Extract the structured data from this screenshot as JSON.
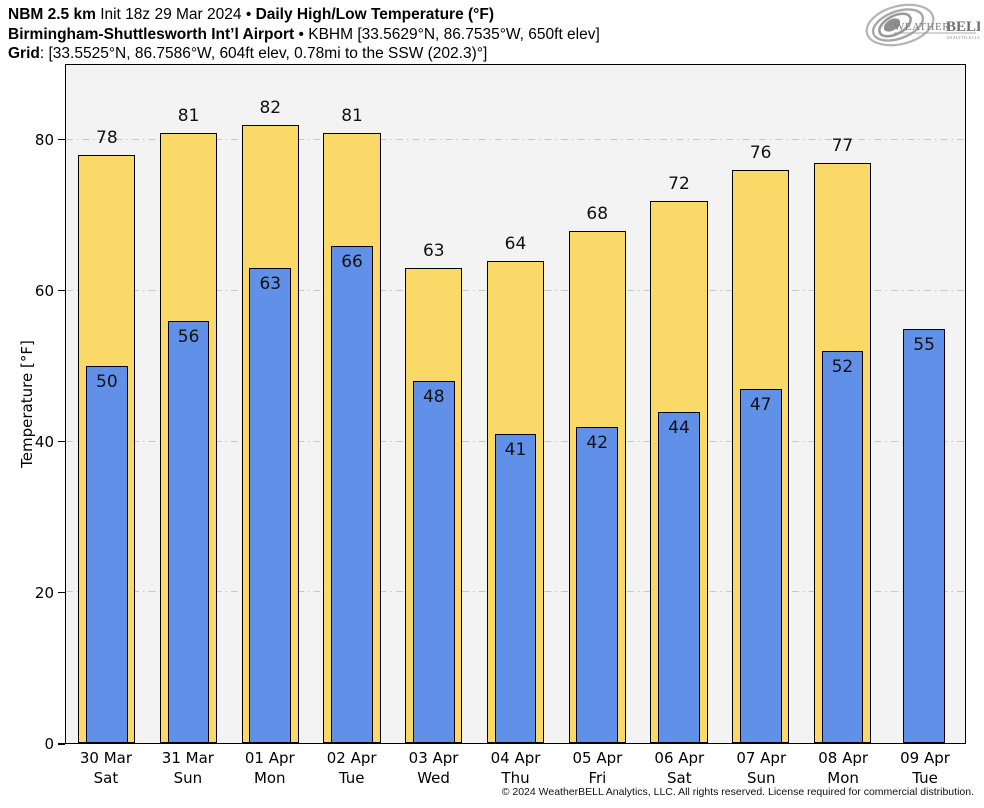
{
  "header": {
    "l1_model": "NBM 2.5 km",
    "l1_init": "Init 18z 29 Mar 2024",
    "l1_bullet": "•",
    "l1_product": "Daily High/Low Temperature (°F)",
    "l2_station": "Birmingham-Shuttlesworth Int’l Airport",
    "l2_bullet": "•",
    "l2_id": "KBHM [33.5629°N, 86.7535°W, 650ft elev]",
    "l3_label": "Grid",
    "l3_value": ": [33.5525°N, 86.7586°W, 604ft elev, 0.78mi to the SSW (202.3)°]"
  },
  "logo": {
    "brand_weather": "Weather",
    "brand_bell": "BELL",
    "subtext": "Analytics LLC"
  },
  "chart_data": {
    "type": "bar",
    "title": "Daily High/Low Temperature (°F)",
    "categories": [
      {
        "date": "30 Mar",
        "day": "Sat"
      },
      {
        "date": "31 Mar",
        "day": "Sun"
      },
      {
        "date": "01 Apr",
        "day": "Mon"
      },
      {
        "date": "02 Apr",
        "day": "Tue"
      },
      {
        "date": "03 Apr",
        "day": "Wed"
      },
      {
        "date": "04 Apr",
        "day": "Thu"
      },
      {
        "date": "05 Apr",
        "day": "Fri"
      },
      {
        "date": "06 Apr",
        "day": "Sat"
      },
      {
        "date": "07 Apr",
        "day": "Sun"
      },
      {
        "date": "08 Apr",
        "day": "Mon"
      },
      {
        "date": "09 Apr",
        "day": "Tue"
      }
    ],
    "series": [
      {
        "name": "High",
        "color": "#FBD968",
        "values": [
          78,
          81,
          82,
          81,
          63,
          64,
          68,
          72,
          76,
          77,
          null
        ]
      },
      {
        "name": "Low",
        "color": "#6190E8",
        "values": [
          50,
          56,
          63,
          66,
          48,
          41,
          42,
          44,
          47,
          52,
          55
        ]
      }
    ],
    "xlabel": "",
    "ylabel": "Temperature [°F]",
    "ylim": [
      0,
      90
    ],
    "yticks": [
      0,
      20,
      40,
      60,
      80
    ],
    "grid": "horizontal dash-dot",
    "legend": "none",
    "plot_background": "#f3f3f3",
    "bar_edge_color": "#000000"
  },
  "footer": {
    "copyright": "© 2024 WeatherBELL Analytics, LLC. All rights reserved. License required for commercial distribution."
  }
}
